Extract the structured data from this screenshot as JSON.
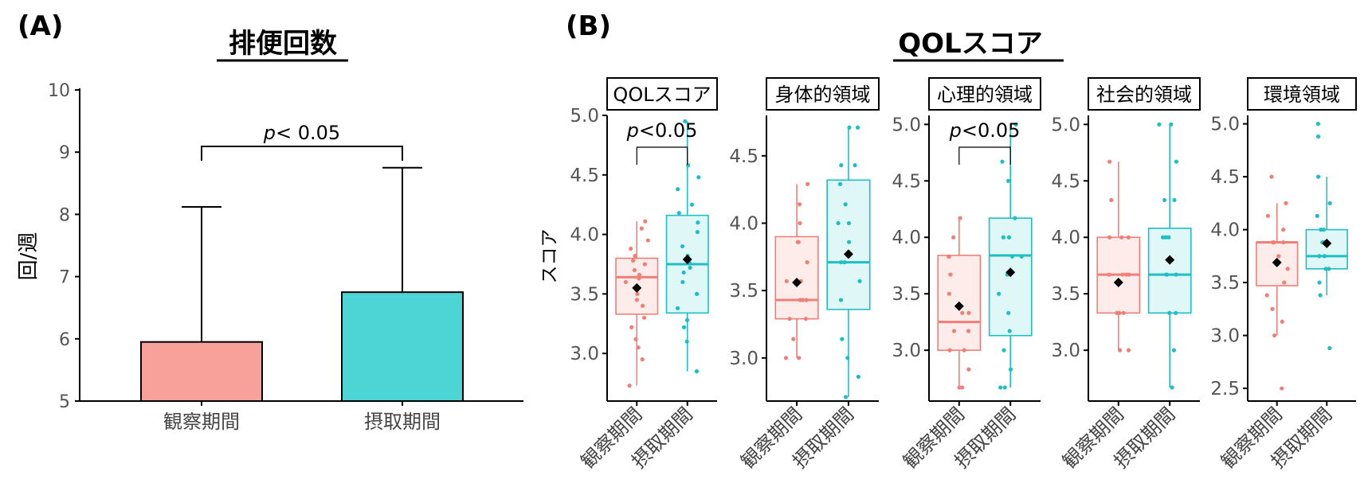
{
  "panel_a": {
    "letter": "(A)",
    "title": "排便回数",
    "ylabel": "回/週",
    "annotation": "< 0.05",
    "annotation_p": "p",
    "chart_data": {
      "type": "bar",
      "title": "排便回数",
      "xlabel": "",
      "ylabel": "回/週",
      "ylim": [
        5,
        10
      ],
      "yticks": [
        "5",
        "6",
        "7",
        "8",
        "9",
        "10"
      ],
      "categories": [
        "観察期間",
        "摂取期間"
      ],
      "values": [
        5.95,
        6.75
      ],
      "error_upper": [
        8.12,
        8.75
      ],
      "colors": [
        "#F8A09A",
        "#4DD4D4"
      ]
    }
  },
  "panel_b": {
    "letter": "(B)",
    "title": "QOLスコア",
    "ylabel": "スコア",
    "colors": {
      "obs": "#F07F77",
      "int": "#1EBFC4",
      "obs_fill": "#FDECEA",
      "int_fill": "#E0F7F8"
    },
    "chart_data": [
      {
        "type": "box",
        "title": "QOLスコア",
        "ylim": [
          2.6,
          5.0
        ],
        "yticks": [
          "3.0",
          "3.5",
          "4.0",
          "4.5",
          "5.0"
        ],
        "categories": [
          "観察期間",
          "摂取期間"
        ],
        "annotation": "<0.05",
        "annotation_p": "p",
        "boxes": [
          {
            "q1": 3.33,
            "median": 3.64,
            "q3": 3.8,
            "whisker_low": 2.73,
            "whisker_high": 4.11,
            "mean": 3.55,
            "points": [
              2.73,
              2.95,
              3.05,
              3.12,
              3.22,
              3.3,
              3.4,
              3.45,
              3.5,
              3.55,
              3.6,
              3.63,
              3.66,
              3.7,
              3.75,
              3.78,
              3.82,
              3.88,
              3.95,
              4.05,
              4.11
            ]
          },
          {
            "q1": 3.34,
            "median": 3.75,
            "q3": 4.16,
            "whisker_low": 2.85,
            "whisker_high": 4.95,
            "mean": 3.79,
            "points": [
              2.85,
              3.1,
              3.22,
              3.28,
              3.38,
              3.5,
              3.6,
              3.68,
              3.72,
              3.76,
              3.82,
              3.9,
              4.02,
              4.1,
              4.18,
              4.25,
              4.38,
              4.48,
              4.58,
              4.95
            ]
          }
        ]
      },
      {
        "type": "box",
        "title": "身体的領域",
        "ylim": [
          2.68,
          4.8
        ],
        "yticks": [
          "3.0",
          "3.5",
          "4.0",
          "4.5"
        ],
        "categories": [
          "観察期間",
          "摂取期間"
        ],
        "boxes": [
          {
            "q1": 3.29,
            "median": 3.43,
            "q3": 3.9,
            "whisker_low": 3.0,
            "whisker_high": 4.29,
            "mean": 3.56,
            "points": [
              3.0,
              3.0,
              3.14,
              3.29,
              3.29,
              3.43,
              3.43,
              3.43,
              3.57,
              3.57,
              3.71,
              3.86,
              3.86,
              4.0,
              4.14,
              4.29
            ]
          },
          {
            "q1": 3.36,
            "median": 3.71,
            "q3": 4.32,
            "whisker_low": 2.71,
            "whisker_high": 4.71,
            "mean": 3.77,
            "points": [
              2.71,
              2.86,
              3.0,
              3.14,
              3.43,
              3.57,
              3.71,
              3.71,
              3.86,
              4.0,
              4.0,
              4.14,
              4.29,
              4.43,
              4.43,
              4.71,
              4.71
            ]
          }
        ]
      },
      {
        "type": "box",
        "title": "心理的領域",
        "ylim": [
          2.55,
          5.08
        ],
        "yticks": [
          "3.0",
          "3.5",
          "4.0",
          "4.5",
          "5.0"
        ],
        "categories": [
          "観察期間",
          "摂取期間"
        ],
        "annotation": "<0.05",
        "annotation_p": "p",
        "boxes": [
          {
            "q1": 3.0,
            "median": 3.25,
            "q3": 3.84,
            "whisker_low": 2.67,
            "whisker_high": 4.17,
            "mean": 3.39,
            "points": [
              2.67,
              2.67,
              2.83,
              3.0,
              3.0,
              3.17,
              3.17,
              3.33,
              3.33,
              3.5,
              3.67,
              3.83,
              3.83,
              4.0,
              4.17
            ]
          },
          {
            "q1": 3.13,
            "median": 3.84,
            "q3": 4.17,
            "whisker_low": 2.67,
            "whisker_high": 5.0,
            "mean": 3.69,
            "points": [
              2.67,
              2.67,
              2.83,
              3.0,
              3.17,
              3.33,
              3.5,
              3.67,
              3.83,
              3.83,
              4.0,
              4.0,
              4.17,
              4.5,
              4.67,
              5.0
            ]
          }
        ]
      },
      {
        "type": "box",
        "title": "社会的領域",
        "ylim": [
          2.55,
          5.08
        ],
        "yticks": [
          "3.0",
          "3.5",
          "4.0",
          "4.5",
          "5.0"
        ],
        "categories": [
          "観察期間",
          "摂取期間"
        ],
        "boxes": [
          {
            "q1": 3.33,
            "median": 3.67,
            "q3": 4.0,
            "whisker_low": 3.0,
            "whisker_high": 4.67,
            "mean": 3.6,
            "points": [
              3.0,
              3.0,
              3.33,
              3.33,
              3.33,
              3.67,
              3.67,
              3.67,
              3.67,
              4.0,
              4.0,
              4.0,
              4.33,
              4.67
            ]
          },
          {
            "q1": 3.33,
            "median": 3.67,
            "q3": 4.08,
            "whisker_low": 2.67,
            "whisker_high": 5.0,
            "mean": 3.8,
            "points": [
              2.67,
              3.0,
              3.33,
              3.33,
              3.67,
              3.67,
              3.67,
              4.0,
              4.0,
              4.0,
              4.33,
              4.33,
              4.67,
              5.0,
              5.0
            ]
          }
        ]
      },
      {
        "type": "box",
        "title": "環境領域",
        "ylim": [
          2.38,
          5.08
        ],
        "yticks": [
          "2.5",
          "3.0",
          "3.5",
          "4.0",
          "4.5",
          "5.0"
        ],
        "categories": [
          "観察期間",
          "摂取期間"
        ],
        "boxes": [
          {
            "q1": 3.47,
            "median": 3.88,
            "q3": 3.88,
            "whisker_low": 3.0,
            "whisker_high": 4.25,
            "mean": 3.69,
            "points": [
              2.5,
              3.0,
              3.13,
              3.25,
              3.38,
              3.5,
              3.63,
              3.75,
              3.88,
              3.88,
              3.88,
              4.0,
              4.13,
              4.25,
              4.5
            ]
          },
          {
            "q1": 3.63,
            "median": 3.75,
            "q3": 4.0,
            "whisker_low": 3.38,
            "whisker_high": 4.5,
            "mean": 3.87,
            "points": [
              2.88,
              3.38,
              3.5,
              3.63,
              3.63,
              3.75,
              3.75,
              3.88,
              3.88,
              4.0,
              4.0,
              4.13,
              4.25,
              4.5,
              4.88,
              5.0
            ]
          }
        ]
      }
    ]
  }
}
